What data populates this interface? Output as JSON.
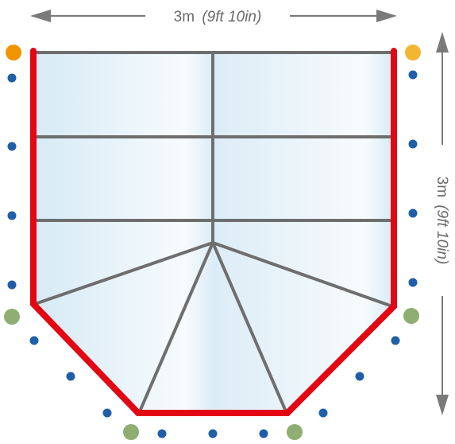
{
  "diagram": {
    "width_label": {
      "value": "3m",
      "imperial": "(9ft 10in)"
    },
    "depth_label": {
      "value": "3m",
      "imperial": "(9ft 10in)"
    },
    "colors": {
      "frame": "#e30613",
      "bars": "#6e6e6e",
      "glass_light": "#f4f9fc",
      "glass_dark": "#d8ebf5",
      "arrow": "#7a7a7a",
      "dot_blue": "#1f5fa8",
      "dot_orange": "#f29400",
      "dot_yellow": "#f2b632",
      "dot_green": "#8fae72"
    }
  }
}
